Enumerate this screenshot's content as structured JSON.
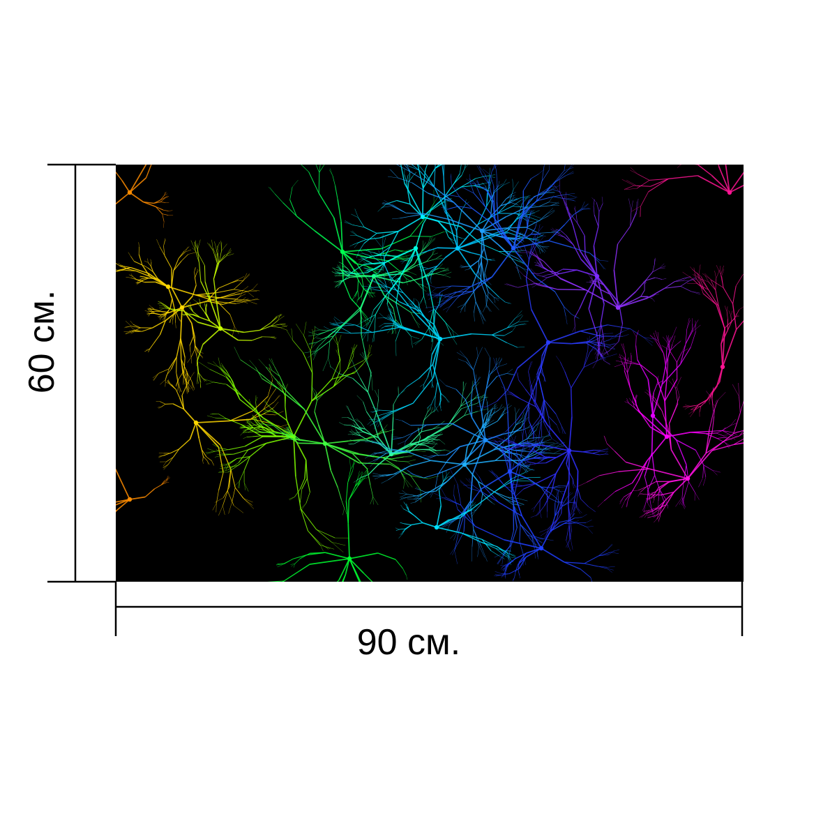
{
  "dimensions": {
    "width_label": "90 см.",
    "height_label": "60 см."
  },
  "artwork": {
    "background": "#000000",
    "palette": [
      "#ff8c00",
      "#ffd700",
      "#7fff00",
      "#00ff40",
      "#00ffd0",
      "#00bfff",
      "#1e5bff",
      "#2020ff",
      "#8a2be2",
      "#ff00ff",
      "#ff1493"
    ]
  }
}
